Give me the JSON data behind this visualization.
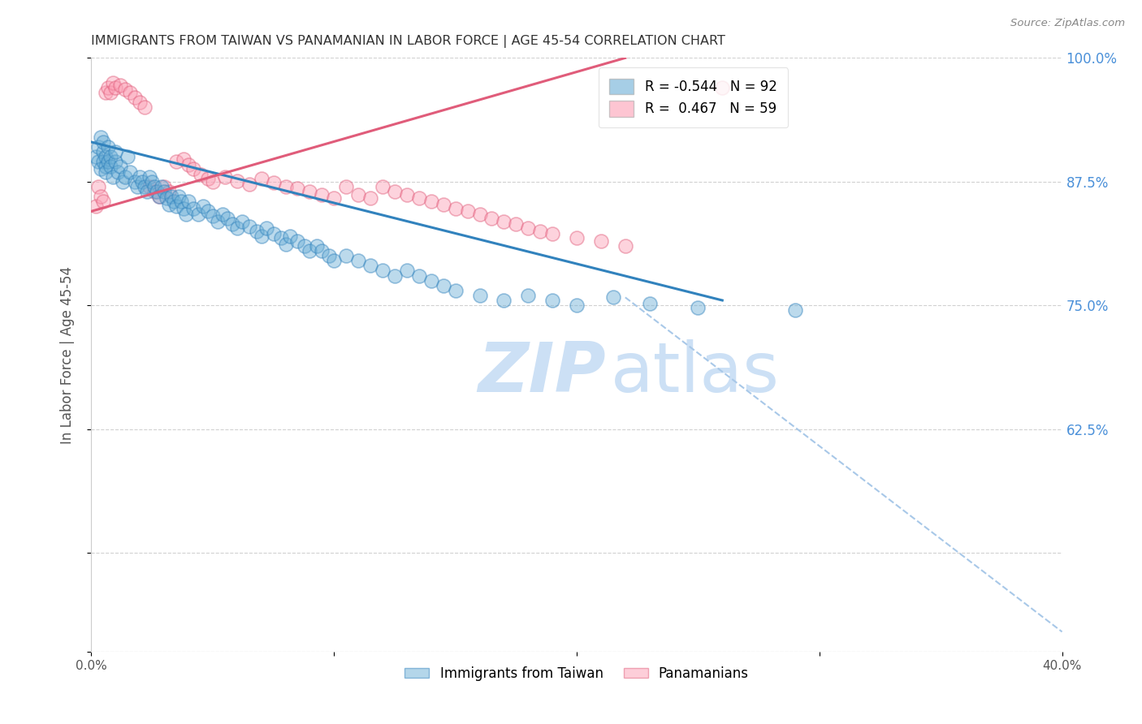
{
  "title": "IMMIGRANTS FROM TAIWAN VS PANAMANIAN IN LABOR FORCE | AGE 45-54 CORRELATION CHART",
  "source_text": "Source: ZipAtlas.com",
  "ylabel": "In Labor Force | Age 45-54",
  "x_min": 0.0,
  "x_max": 0.4,
  "y_min": 0.4,
  "y_max": 1.0,
  "taiwan_color": "#6baed6",
  "panama_color": "#fc9fb5",
  "taiwan_R": -0.544,
  "taiwan_N": 92,
  "panama_R": 0.467,
  "panama_N": 59,
  "taiwan_line_color": "#3182bd",
  "panama_line_color": "#e05c7a",
  "dashed_line_color": "#a8c8e8",
  "watermark_color": "#cce0f5",
  "background_color": "#ffffff",
  "grid_color": "#cccccc",
  "title_color": "#333333",
  "axis_label_color": "#555555",
  "tick_label_color_right": "#4a90d9",
  "tick_label_color_bottom": "#555555",
  "taiwan_line": {
    "x0": 0.0,
    "x1": 0.26,
    "y0": 0.915,
    "y1": 0.755
  },
  "panama_line": {
    "x0": 0.0,
    "x1": 0.22,
    "y0": 0.845,
    "y1": 1.0
  },
  "dashed_line": {
    "x0": 0.22,
    "x1": 0.4,
    "y0": 0.758,
    "y1": 0.42
  },
  "taiwan_scatter_x": [
    0.002,
    0.003,
    0.003,
    0.004,
    0.004,
    0.005,
    0.005,
    0.005,
    0.006,
    0.006,
    0.006,
    0.007,
    0.007,
    0.008,
    0.008,
    0.009,
    0.01,
    0.01,
    0.011,
    0.012,
    0.013,
    0.014,
    0.015,
    0.016,
    0.018,
    0.019,
    0.02,
    0.021,
    0.022,
    0.023,
    0.024,
    0.025,
    0.026,
    0.027,
    0.028,
    0.029,
    0.03,
    0.031,
    0.032,
    0.033,
    0.034,
    0.035,
    0.036,
    0.037,
    0.038,
    0.039,
    0.04,
    0.042,
    0.044,
    0.046,
    0.048,
    0.05,
    0.052,
    0.054,
    0.056,
    0.058,
    0.06,
    0.062,
    0.065,
    0.068,
    0.07,
    0.072,
    0.075,
    0.078,
    0.08,
    0.082,
    0.085,
    0.088,
    0.09,
    0.093,
    0.095,
    0.098,
    0.1,
    0.105,
    0.11,
    0.115,
    0.12,
    0.125,
    0.13,
    0.135,
    0.14,
    0.145,
    0.15,
    0.16,
    0.17,
    0.18,
    0.19,
    0.2,
    0.215,
    0.23,
    0.25,
    0.29
  ],
  "taiwan_scatter_y": [
    0.9,
    0.895,
    0.91,
    0.888,
    0.92,
    0.905,
    0.895,
    0.915,
    0.89,
    0.9,
    0.885,
    0.91,
    0.895,
    0.9,
    0.89,
    0.88,
    0.895,
    0.905,
    0.885,
    0.89,
    0.875,
    0.88,
    0.9,
    0.885,
    0.875,
    0.87,
    0.88,
    0.875,
    0.87,
    0.865,
    0.88,
    0.875,
    0.87,
    0.865,
    0.86,
    0.87,
    0.865,
    0.858,
    0.852,
    0.86,
    0.855,
    0.85,
    0.86,
    0.855,
    0.848,
    0.842,
    0.855,
    0.848,
    0.842,
    0.85,
    0.845,
    0.84,
    0.835,
    0.842,
    0.838,
    0.832,
    0.828,
    0.835,
    0.83,
    0.825,
    0.82,
    0.828,
    0.822,
    0.818,
    0.812,
    0.82,
    0.815,
    0.81,
    0.805,
    0.81,
    0.805,
    0.8,
    0.795,
    0.8,
    0.795,
    0.79,
    0.785,
    0.78,
    0.785,
    0.78,
    0.775,
    0.77,
    0.765,
    0.76,
    0.755,
    0.76,
    0.755,
    0.75,
    0.758,
    0.752,
    0.748,
    0.745
  ],
  "panama_scatter_x": [
    0.002,
    0.003,
    0.004,
    0.005,
    0.006,
    0.007,
    0.008,
    0.009,
    0.01,
    0.012,
    0.014,
    0.016,
    0.018,
    0.02,
    0.022,
    0.024,
    0.026,
    0.028,
    0.03,
    0.032,
    0.035,
    0.038,
    0.04,
    0.042,
    0.045,
    0.048,
    0.05,
    0.055,
    0.06,
    0.065,
    0.07,
    0.075,
    0.08,
    0.085,
    0.09,
    0.095,
    0.1,
    0.105,
    0.11,
    0.115,
    0.12,
    0.125,
    0.13,
    0.135,
    0.14,
    0.145,
    0.15,
    0.155,
    0.16,
    0.165,
    0.17,
    0.175,
    0.18,
    0.185,
    0.19,
    0.2,
    0.21,
    0.22,
    0.26
  ],
  "panama_scatter_y": [
    0.85,
    0.87,
    0.86,
    0.855,
    0.965,
    0.97,
    0.965,
    0.975,
    0.97,
    0.972,
    0.968,
    0.965,
    0.96,
    0.955,
    0.95,
    0.87,
    0.865,
    0.86,
    0.87,
    0.865,
    0.895,
    0.898,
    0.892,
    0.888,
    0.882,
    0.878,
    0.875,
    0.88,
    0.876,
    0.872,
    0.878,
    0.874,
    0.87,
    0.868,
    0.865,
    0.862,
    0.858,
    0.87,
    0.862,
    0.858,
    0.87,
    0.865,
    0.862,
    0.858,
    0.855,
    0.852,
    0.848,
    0.845,
    0.842,
    0.838,
    0.835,
    0.832,
    0.828,
    0.825,
    0.822,
    0.818,
    0.815,
    0.81,
    0.97
  ]
}
